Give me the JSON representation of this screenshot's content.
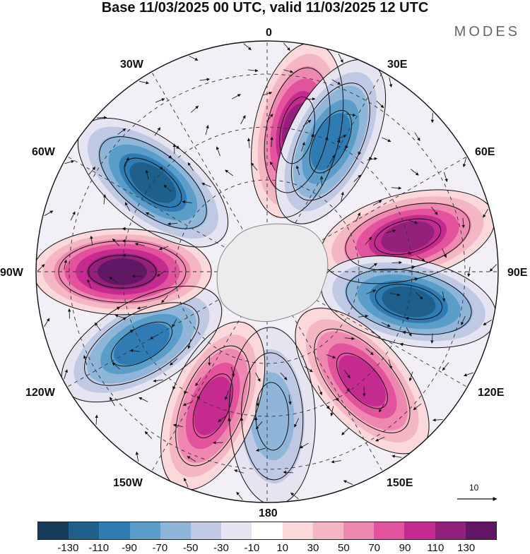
{
  "title": "Base 11/03/2025 00 UTC, valid 11/03/2025 12 UTC",
  "brand": "MODES",
  "longitude_labels": [
    {
      "name": "lon-0",
      "text": "0"
    },
    {
      "name": "lon-30e",
      "text": "30E"
    },
    {
      "name": "lon-60e",
      "text": "60E"
    },
    {
      "name": "lon-90e",
      "text": "90E"
    },
    {
      "name": "lon-120e",
      "text": "120E"
    },
    {
      "name": "lon-150e",
      "text": "150E"
    },
    {
      "name": "lon-180",
      "text": "180"
    },
    {
      "name": "lon-150w",
      "text": "150W"
    },
    {
      "name": "lon-120w",
      "text": "120W"
    },
    {
      "name": "lon-90w",
      "text": "90W"
    },
    {
      "name": "lon-60w",
      "text": "60W"
    },
    {
      "name": "lon-30w",
      "text": "30W"
    }
  ],
  "vector_reference": "10",
  "legend": {
    "colors": [
      "#163a59",
      "#1f5f8b",
      "#2f7bb4",
      "#5b9dc9",
      "#8fb6d8",
      "#bfc9e3",
      "#e6e4f0",
      "#ffffff",
      "#fbd9da",
      "#f5b6c3",
      "#ef88b0",
      "#e3529c",
      "#c52b8f",
      "#93207a",
      "#621766"
    ],
    "tick_labels": [
      "-130",
      "-110",
      "-90",
      "-70",
      "-50",
      "-30",
      "-10",
      "10",
      "30",
      "50",
      "70",
      "90",
      "110",
      "130"
    ]
  },
  "anomaly_centers": [
    {
      "name": "pos-center-0",
      "lon": 12,
      "sign": 1,
      "peak": 110
    },
    {
      "name": "neg-center-30e",
      "lon": 26,
      "sign": -1,
      "peak": -90
    },
    {
      "name": "pos-center-90e",
      "lon": 76,
      "sign": 1,
      "peak": 110
    },
    {
      "name": "neg-center-100e",
      "lon": 102,
      "sign": -1,
      "peak": -110
    },
    {
      "name": "pos-center-140e",
      "lon": 139,
      "sign": 1,
      "peak": 90
    },
    {
      "name": "neg-center-180",
      "lon": 178,
      "sign": -1,
      "peak": -50
    },
    {
      "name": "pos-center-150w",
      "lon": -158,
      "sign": 1,
      "peak": 90
    },
    {
      "name": "neg-center-125w",
      "lon": -120,
      "sign": -1,
      "peak": -90
    },
    {
      "name": "pos-center-90w",
      "lon": -90,
      "sign": 1,
      "peak": 130
    },
    {
      "name": "neg-center-55w",
      "lon": -52,
      "sign": -1,
      "peak": -110
    }
  ]
}
